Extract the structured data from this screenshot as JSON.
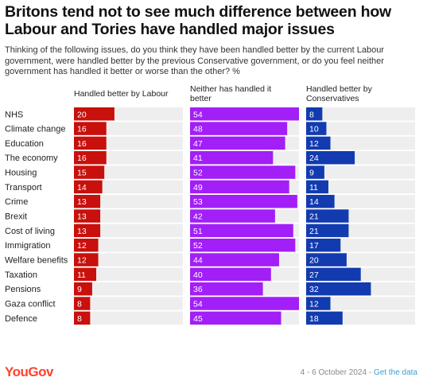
{
  "title": "Britons tend not to see much difference between how Labour and Tories have handled major issues",
  "subtitle": "Thinking of the following issues, do you think they have been handled better by the current Labour government, were handled better by the previous Conservative government, or do you feel neither government has handled it better or worse than the other? %",
  "footer": {
    "logo": "YouGov",
    "date": "4 - 6 October 2024 - ",
    "link": "Get the data"
  },
  "colors": {
    "labour": "#c8100c",
    "neither": "#a21ff7",
    "conservatives": "#123bb0",
    "track": "#eeeeee"
  },
  "chart_data": {
    "type": "bar",
    "categories": [
      "NHS",
      "Climate change",
      "Education",
      "The economy",
      "Housing",
      "Transport",
      "Crime",
      "Brexit",
      "Cost of living",
      "Immigration",
      "Welfare benefits",
      "Taxation",
      "Pensions",
      "Gaza conflict",
      "Defence"
    ],
    "series": [
      {
        "name": "Handled better by Labour",
        "values": [
          20,
          16,
          16,
          16,
          15,
          14,
          13,
          13,
          13,
          12,
          12,
          11,
          9,
          8,
          8
        ]
      },
      {
        "name": "Neither has handled it better",
        "values": [
          54,
          48,
          47,
          41,
          52,
          49,
          53,
          42,
          51,
          52,
          44,
          40,
          36,
          54,
          45
        ]
      },
      {
        "name": "Handled better by Conservatives",
        "values": [
          8,
          10,
          12,
          24,
          9,
          11,
          14,
          21,
          21,
          17,
          20,
          27,
          32,
          12,
          18
        ]
      }
    ]
  }
}
